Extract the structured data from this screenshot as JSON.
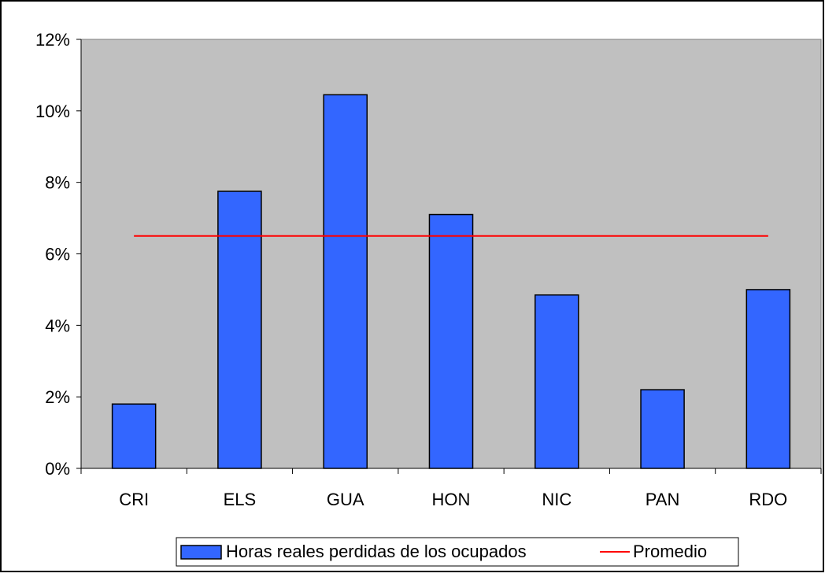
{
  "chart_data": {
    "type": "bar",
    "categories": [
      "CRI",
      "ELS",
      "GUA",
      "HON",
      "NIC",
      "PAN",
      "RDO"
    ],
    "series": [
      {
        "name": "Horas reales perdidas de los ocupados",
        "type": "bar",
        "values": [
          1.8,
          7.75,
          10.45,
          7.1,
          4.85,
          2.2,
          5.0
        ],
        "color": "#3366FF"
      },
      {
        "name": "Promedio",
        "type": "line",
        "values": [
          6.5,
          6.5,
          6.5,
          6.5,
          6.5,
          6.5,
          6.5
        ],
        "color": "#FF0000"
      }
    ],
    "yticks": [
      "0%",
      "2%",
      "4%",
      "6%",
      "8%",
      "10%",
      "12%"
    ],
    "ylim": [
      0,
      12
    ],
    "ylabel": "",
    "xlabel": "",
    "title": "",
    "grid": false,
    "plot_background": "#C0C0C0",
    "legend_position": "bottom"
  }
}
